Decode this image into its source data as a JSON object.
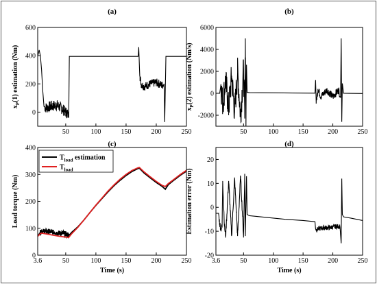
{
  "chart_data": [
    {
      "panel_label": "(a)",
      "type": "line",
      "xlabel": "",
      "ylabel": "x_P(1) estimation (Nm)",
      "ylabel_main": "x",
      "ylabel_sub": "P",
      "ylabel_rest": "(1) estimation (Nm)",
      "xlim": [
        3.6,
        250
      ],
      "ylim": [
        -100,
        600
      ],
      "xticks": [
        50,
        100,
        150,
        200,
        250
      ],
      "xtick_labels": [
        "50",
        "100",
        "150",
        "200",
        "250"
      ],
      "yticks": [
        0,
        200,
        400,
        600
      ],
      "ytick_labels": [
        "0",
        "200",
        "400",
        "600"
      ],
      "series": [
        {
          "color": "#000000",
          "x": [
            3.6,
            6,
            8,
            10,
            12,
            14,
            18,
            25,
            35,
            45,
            50,
            53,
            55,
            56,
            60,
            100,
            150,
            170,
            171,
            173,
            175,
            180,
            190,
            200,
            210,
            213,
            214,
            216,
            218,
            220,
            230,
            240,
            250
          ],
          "y": [
            395,
            440,
            400,
            300,
            150,
            40,
            30,
            40,
            50,
            20,
            0,
            -10,
            -40,
            395,
            395,
            395,
            395,
            395,
            460,
            250,
            200,
            180,
            200,
            210,
            190,
            200,
            -70,
            395,
            395,
            395,
            395,
            395,
            395
          ],
          "noise": [
            {
              "x_from": 15,
              "x_to": 54,
              "amplitude": 40
            },
            {
              "x_from": 172,
              "x_to": 212,
              "amplitude": 30
            }
          ]
        }
      ]
    },
    {
      "panel_label": "(b)",
      "type": "line",
      "xlabel": "",
      "ylabel": "x_P(2) estimation (Nm/s)",
      "ylabel_main": "x",
      "ylabel_sub": "P",
      "ylabel_rest": "(2) estimation (Nm/s)",
      "xlim": [
        3.6,
        250
      ],
      "ylim": [
        -3000,
        6000
      ],
      "xticks": [
        50,
        100,
        150,
        200,
        250
      ],
      "xtick_labels": [
        "50",
        "100",
        "150",
        "200",
        "250"
      ],
      "yticks": [
        -2000,
        0,
        2000,
        4000,
        6000
      ],
      "ytick_labels": [
        "-2000",
        "0",
        "2000",
        "4000",
        "6000"
      ],
      "series": [
        {
          "color": "#000000",
          "x": [
            3.6,
            10,
            12,
            15,
            20,
            25,
            30,
            35,
            40,
            45,
            50,
            52,
            53,
            54,
            55,
            56,
            60,
            100,
            150,
            170,
            171,
            172,
            175,
            180,
            190,
            200,
            210,
            213,
            214,
            215,
            216,
            218,
            250
          ],
          "y": [
            0,
            0,
            800,
            -900,
            1200,
            -1400,
            1600,
            -1700,
            1900,
            -2000,
            2200,
            -2300,
            5000,
            -2400,
            2600,
            80,
            60,
            40,
            20,
            10,
            1200,
            -800,
            400,
            -300,
            300,
            -300,
            300,
            -400,
            5000,
            -2600,
            900,
            0,
            -20
          ],
          "noise": [
            {
              "x_from": 12,
              "x_to": 55,
              "amplitude": 1400
            },
            {
              "x_from": 172,
              "x_to": 212,
              "amplitude": 350
            }
          ]
        }
      ]
    },
    {
      "panel_label": "(c)",
      "type": "line",
      "xlabel": "Time (s)",
      "ylabel": "Load torque (Nm)",
      "xlim": [
        3.6,
        250
      ],
      "ylim": [
        0,
        400
      ],
      "xticks": [
        3.6,
        50,
        100,
        150,
        200,
        250
      ],
      "xtick_labels": [
        "3.6",
        "50",
        "100",
        "150",
        "200",
        "250"
      ],
      "yticks": [
        0,
        100,
        200,
        300,
        400
      ],
      "ytick_labels": [
        "0",
        "100",
        "200",
        "300",
        "400"
      ],
      "legend_position": "top-left",
      "series": [
        {
          "name": "T_load estimation",
          "legend_main": "T",
          "legend_sub": "load",
          "legend_rest": " estimation",
          "color": "#000000",
          "x": [
            3.6,
            5,
            8,
            10,
            20,
            30,
            40,
            50,
            55,
            60,
            70,
            80,
            90,
            100,
            110,
            120,
            130,
            140,
            150,
            160,
            170,
            172,
            180,
            190,
            200,
            210,
            215,
            220,
            230,
            240,
            250
          ],
          "y": [
            70,
            75,
            85,
            90,
            88,
            85,
            82,
            80,
            72,
            85,
            105,
            130,
            158,
            185,
            210,
            235,
            258,
            278,
            296,
            311,
            322,
            323,
            305,
            287,
            270,
            255,
            245,
            262,
            280,
            297,
            312
          ],
          "noise": [
            {
              "x_from": 8,
              "x_to": 55,
              "amplitude": 9
            }
          ]
        },
        {
          "name": "T_load",
          "legend_main": "T",
          "legend_sub": "load",
          "legend_rest": "",
          "color": "#e02020",
          "x": [
            3.6,
            8,
            10,
            20,
            30,
            40,
            50,
            55,
            60,
            70,
            80,
            90,
            100,
            110,
            120,
            130,
            140,
            150,
            160,
            170,
            172,
            180,
            190,
            200,
            210,
            215,
            220,
            230,
            240,
            250
          ],
          "y": [
            70,
            80,
            82,
            78,
            74,
            70,
            67,
            66,
            80,
            103,
            130,
            158,
            186,
            212,
            238,
            261,
            282,
            300,
            315,
            325,
            326,
            309,
            291,
            274,
            259,
            255,
            266,
            283,
            300,
            315
          ]
        }
      ]
    },
    {
      "panel_label": "(d)",
      "type": "line",
      "xlabel": "Time (s)",
      "ylabel": "Estimation error (Nm)",
      "xlim": [
        3.6,
        250
      ],
      "ylim": [
        -20,
        25
      ],
      "xticks": [
        3.6,
        50,
        100,
        150,
        200,
        250
      ],
      "xtick_labels": [
        "3.6",
        "50",
        "100",
        "150",
        "200",
        "250"
      ],
      "yticks": [
        -20,
        -10,
        0,
        10,
        20
      ],
      "ytick_labels": [
        "-20",
        "-10",
        "0",
        "10",
        "20"
      ],
      "series": [
        {
          "color": "#000000",
          "x": [
            3.6,
            8,
            10,
            12,
            14,
            15,
            18,
            20,
            25,
            30,
            35,
            40,
            45,
            50,
            52,
            53,
            55,
            56,
            60,
            80,
            100,
            120,
            150,
            170,
            171,
            173,
            175,
            185,
            195,
            205,
            212,
            214,
            215,
            216,
            218,
            230,
            240,
            250
          ],
          "y": [
            -2.5,
            -2.5,
            -7,
            -9,
            -8,
            11,
            -8,
            -12,
            11,
            -12,
            12,
            -12,
            13,
            -12,
            14,
            -12,
            13,
            -3,
            -3.5,
            -4,
            -4.5,
            -5,
            -5.5,
            -6,
            -9,
            -9.5,
            -9,
            -8.5,
            -8.5,
            -8,
            -8,
            -15,
            12,
            -3,
            -4,
            -4.5,
            -5,
            -5.5
          ],
          "noise": [
            {
              "x_from": 8,
              "x_to": 55,
              "amplitude": 1.5
            },
            {
              "x_from": 172,
              "x_to": 212,
              "amplitude": 1.0
            }
          ]
        }
      ]
    }
  ]
}
